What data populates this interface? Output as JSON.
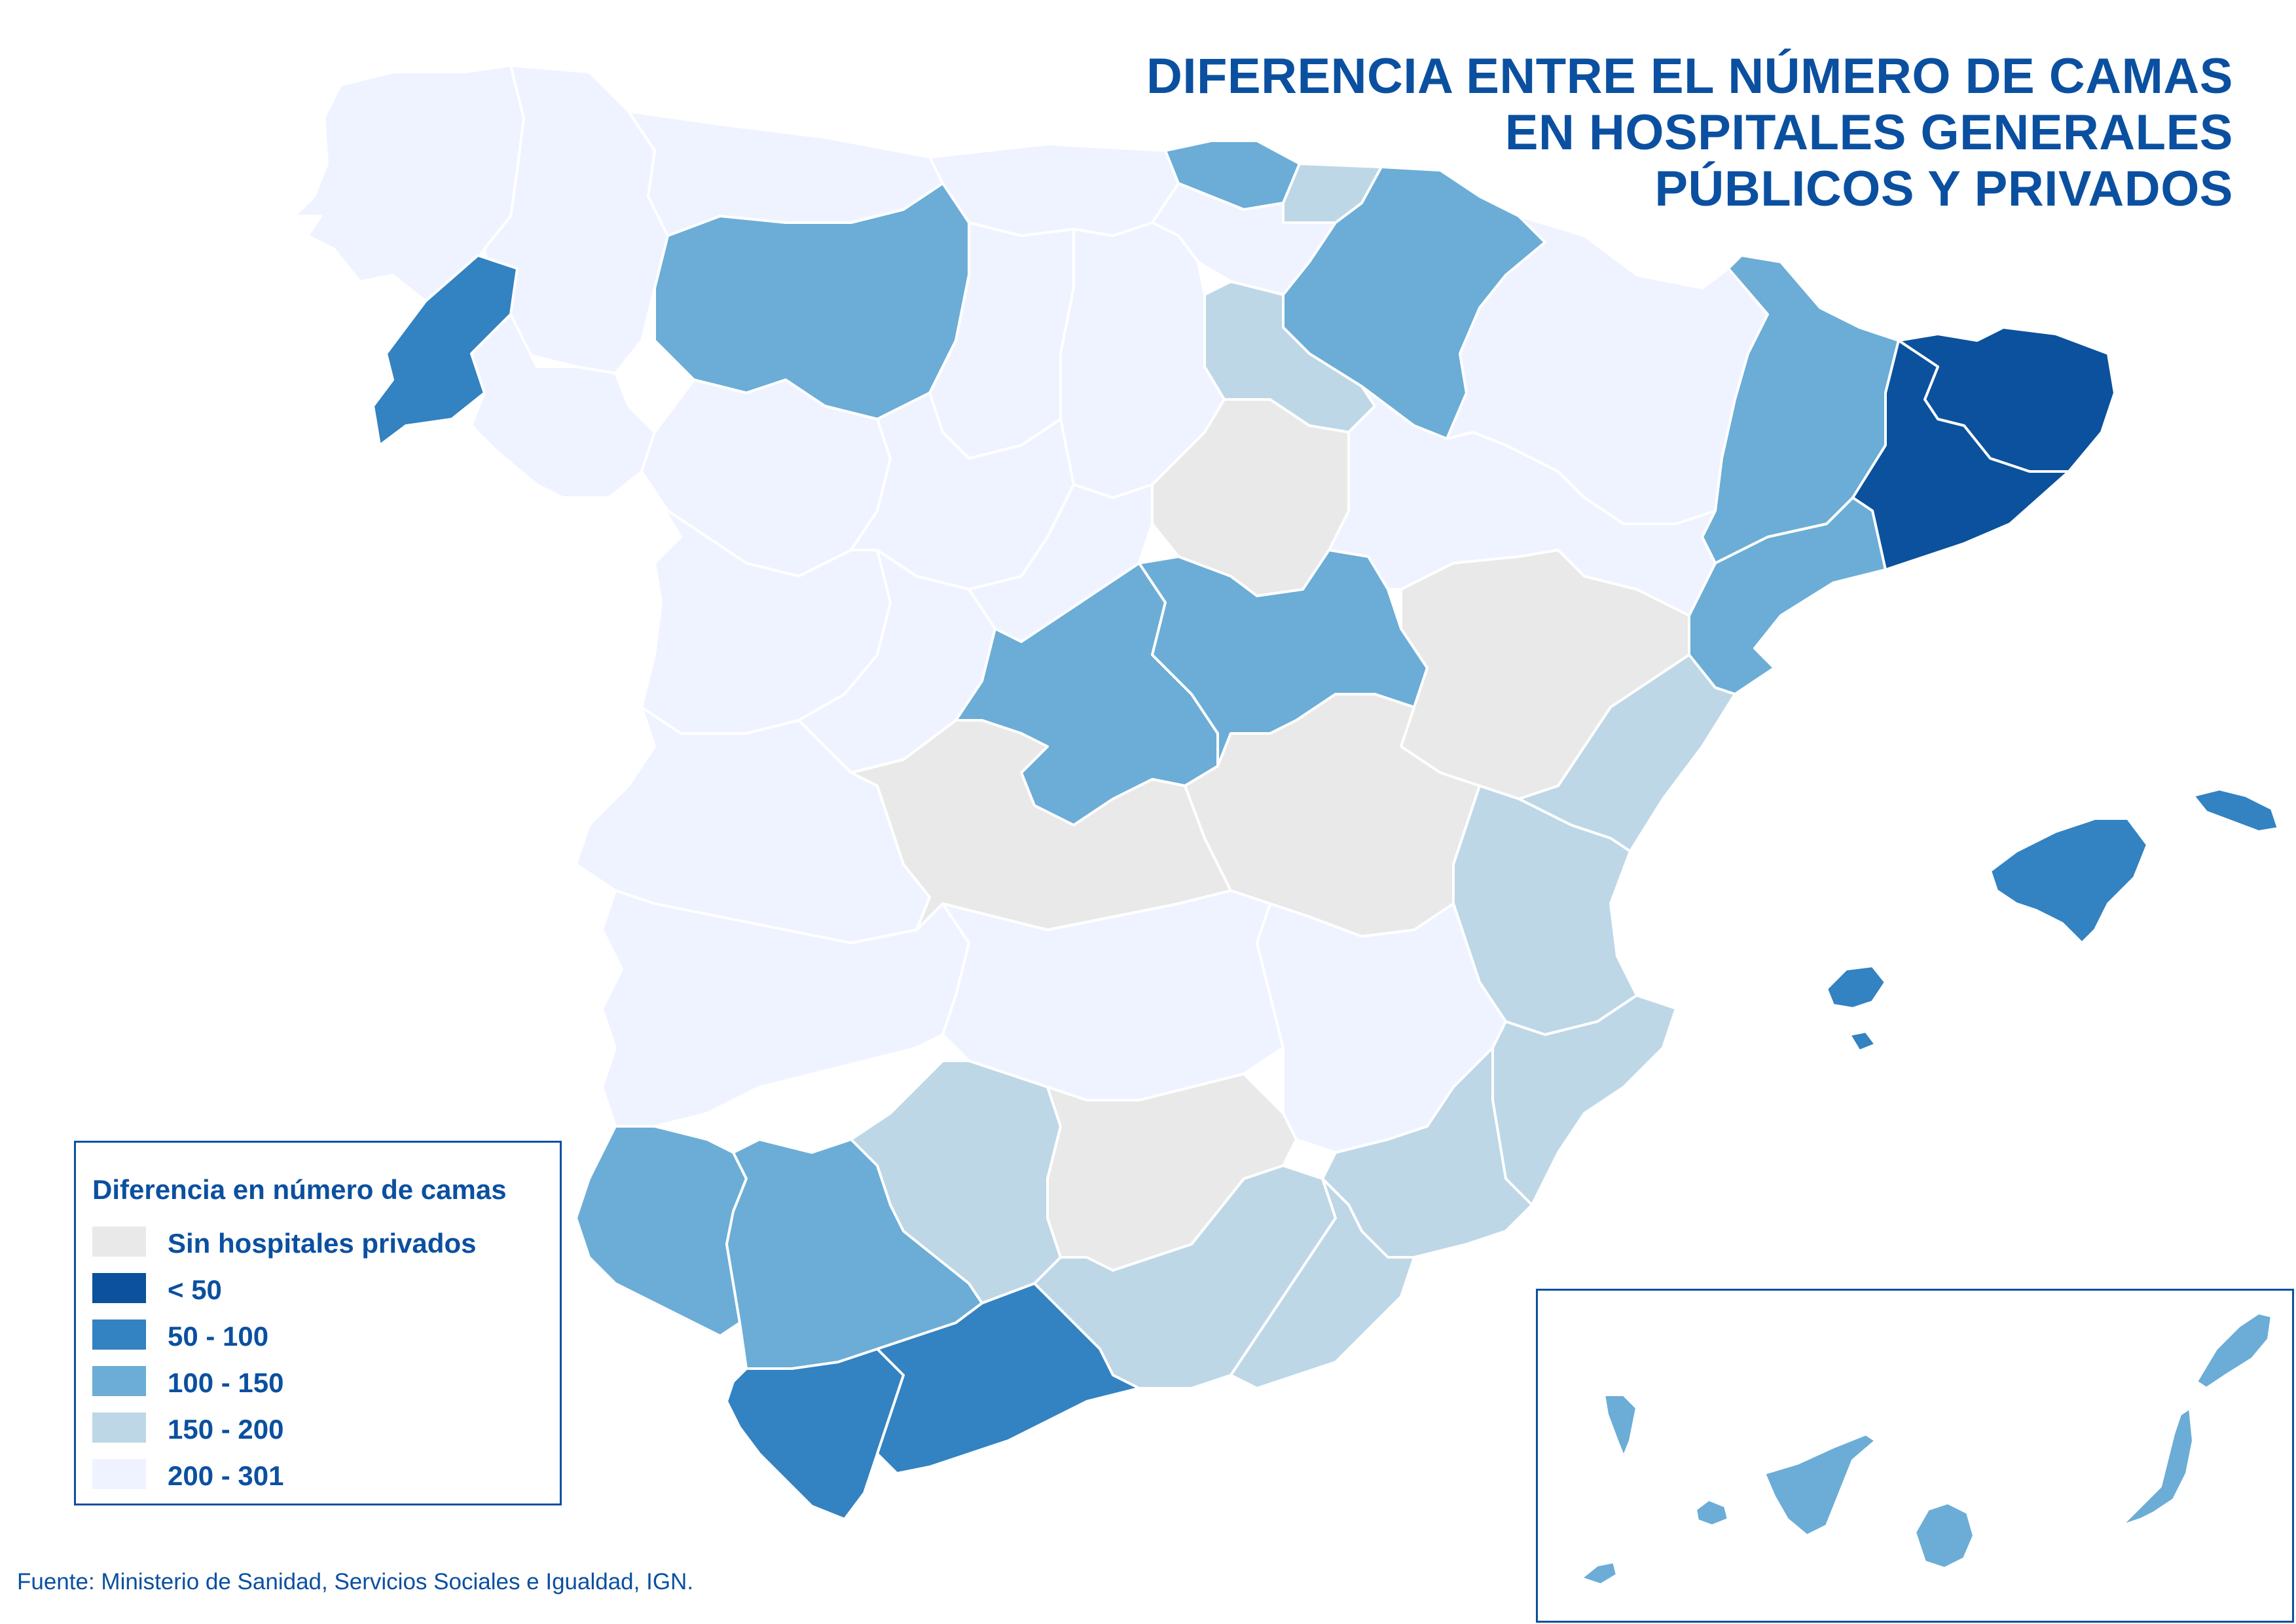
{
  "title": {
    "line1": "DIFERENCIA ENTRE EL NÚMERO DE CAMAS",
    "line2": "EN HOSPITALES GENERALES",
    "line3": "PÚBLICOS Y PRIVADOS"
  },
  "legend": {
    "title": "Diferencia en número de camas",
    "items": [
      {
        "label": "Sin hospitales privados",
        "color": "#e9e9e9"
      },
      {
        "label": "< 50",
        "color": "#0b519d"
      },
      {
        "label": "50 - 100",
        "color": "#3382c1"
      },
      {
        "label": "100 - 150",
        "color": "#6badd6"
      },
      {
        "label": "150 - 200",
        "color": "#bdd7e7"
      },
      {
        "label": "200 - 301",
        "color": "#eff3ff"
      }
    ]
  },
  "source": "Fuente: Ministerio de Sanidad, Servicios Sociales e Igualdad, IGN.",
  "regions": [
    {
      "name": "A Coruña",
      "cls": 5
    },
    {
      "name": "Lugo",
      "cls": 5
    },
    {
      "name": "Pontevedra",
      "cls": 2
    },
    {
      "name": "Ourense",
      "cls": 5
    },
    {
      "name": "Asturias",
      "cls": 5
    },
    {
      "name": "Cantabria",
      "cls": 5
    },
    {
      "name": "Bizkaia",
      "cls": 3
    },
    {
      "name": "Gipuzkoa",
      "cls": 4
    },
    {
      "name": "Álava",
      "cls": 5
    },
    {
      "name": "Navarra",
      "cls": 3
    },
    {
      "name": "La Rioja",
      "cls": 4
    },
    {
      "name": "Huesca",
      "cls": 5
    },
    {
      "name": "Lleida",
      "cls": 3
    },
    {
      "name": "Girona",
      "cls": 1
    },
    {
      "name": "Barcelona",
      "cls": 1
    },
    {
      "name": "Tarragona",
      "cls": 3
    },
    {
      "name": "Zaragoza",
      "cls": 5
    },
    {
      "name": "León",
      "cls": 3
    },
    {
      "name": "Palencia",
      "cls": 5
    },
    {
      "name": "Burgos",
      "cls": 5
    },
    {
      "name": "Zamora",
      "cls": 5
    },
    {
      "name": "Valladolid",
      "cls": 5
    },
    {
      "name": "Soria",
      "cls": 0
    },
    {
      "name": "Salamanca",
      "cls": 5
    },
    {
      "name": "Ávila",
      "cls": 5
    },
    {
      "name": "Segovia",
      "cls": 5
    },
    {
      "name": "Madrid",
      "cls": 3
    },
    {
      "name": "Guadalajara",
      "cls": 3
    },
    {
      "name": "Teruel",
      "cls": 0
    },
    {
      "name": "Castellón",
      "cls": 4
    },
    {
      "name": "Cáceres",
      "cls": 5
    },
    {
      "name": "Toledo",
      "cls": 0
    },
    {
      "name": "Cuenca",
      "cls": 0
    },
    {
      "name": "Valencia",
      "cls": 4
    },
    {
      "name": "Badajoz",
      "cls": 5
    },
    {
      "name": "Ciudad Real",
      "cls": 5
    },
    {
      "name": "Albacete",
      "cls": 5
    },
    {
      "name": "Alicante",
      "cls": 4
    },
    {
      "name": "Murcia",
      "cls": 4
    },
    {
      "name": "Huelva",
      "cls": 3
    },
    {
      "name": "Sevilla",
      "cls": 3
    },
    {
      "name": "Córdoba",
      "cls": 4
    },
    {
      "name": "Jaén",
      "cls": 0
    },
    {
      "name": "Granada",
      "cls": 4
    },
    {
      "name": "Almería",
      "cls": 4
    },
    {
      "name": "Cádiz",
      "cls": 2
    },
    {
      "name": "Málaga",
      "cls": 2
    },
    {
      "name": "Mallorca",
      "cls": 2
    },
    {
      "name": "Menorca",
      "cls": 2
    },
    {
      "name": "Ibiza",
      "cls": 2
    },
    {
      "name": "Formentera",
      "cls": 2
    },
    {
      "name": "Lanzarote",
      "cls": 3
    },
    {
      "name": "Fuerteventura",
      "cls": 3
    },
    {
      "name": "Gran Canaria",
      "cls": 3
    },
    {
      "name": "Tenerife",
      "cls": 3
    },
    {
      "name": "La Gomera",
      "cls": 3
    },
    {
      "name": "La Palma",
      "cls": 3
    },
    {
      "name": "El Hierro",
      "cls": 3
    }
  ]
}
